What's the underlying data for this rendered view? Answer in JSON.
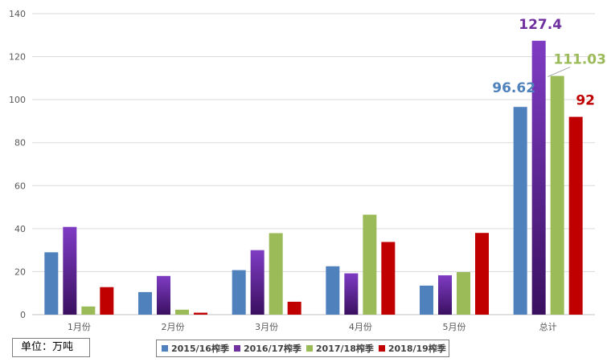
{
  "chart_data": {
    "type": "bar",
    "categories": [
      "1月份",
      "2月份",
      "3月份",
      "4月份",
      "5月份",
      "总计"
    ],
    "series": [
      {
        "name": "2015/16榨季",
        "color": "#4f81bd",
        "values": [
          29,
          10.5,
          20.7,
          22.5,
          13.5,
          96.62
        ]
      },
      {
        "name": "2016/17榨季",
        "color": "#7030a0",
        "values": [
          40.8,
          18,
          30,
          19.2,
          18.3,
          127.4
        ]
      },
      {
        "name": "2017/18榨季",
        "color": "#9bbb59",
        "values": [
          3.8,
          2.3,
          37.9,
          46.5,
          19.8,
          111.03
        ]
      },
      {
        "name": "2018/19榨季",
        "color": "#c00000",
        "values": [
          12.8,
          0.9,
          6,
          33.8,
          38,
          92
        ]
      }
    ],
    "data_labels": {
      "category": "总计",
      "texts": [
        "96.62",
        "127.4",
        "111.03",
        "92"
      ],
      "colors": [
        "#4f81bd",
        "#7030a0",
        "#9bbb59",
        "#c00000"
      ]
    },
    "ylim": [
      0,
      140
    ],
    "yticks": [
      0,
      20,
      40,
      60,
      80,
      100,
      120,
      140
    ],
    "grid": true,
    "legend_position": "bottom"
  },
  "unit_label": "单位：万吨"
}
